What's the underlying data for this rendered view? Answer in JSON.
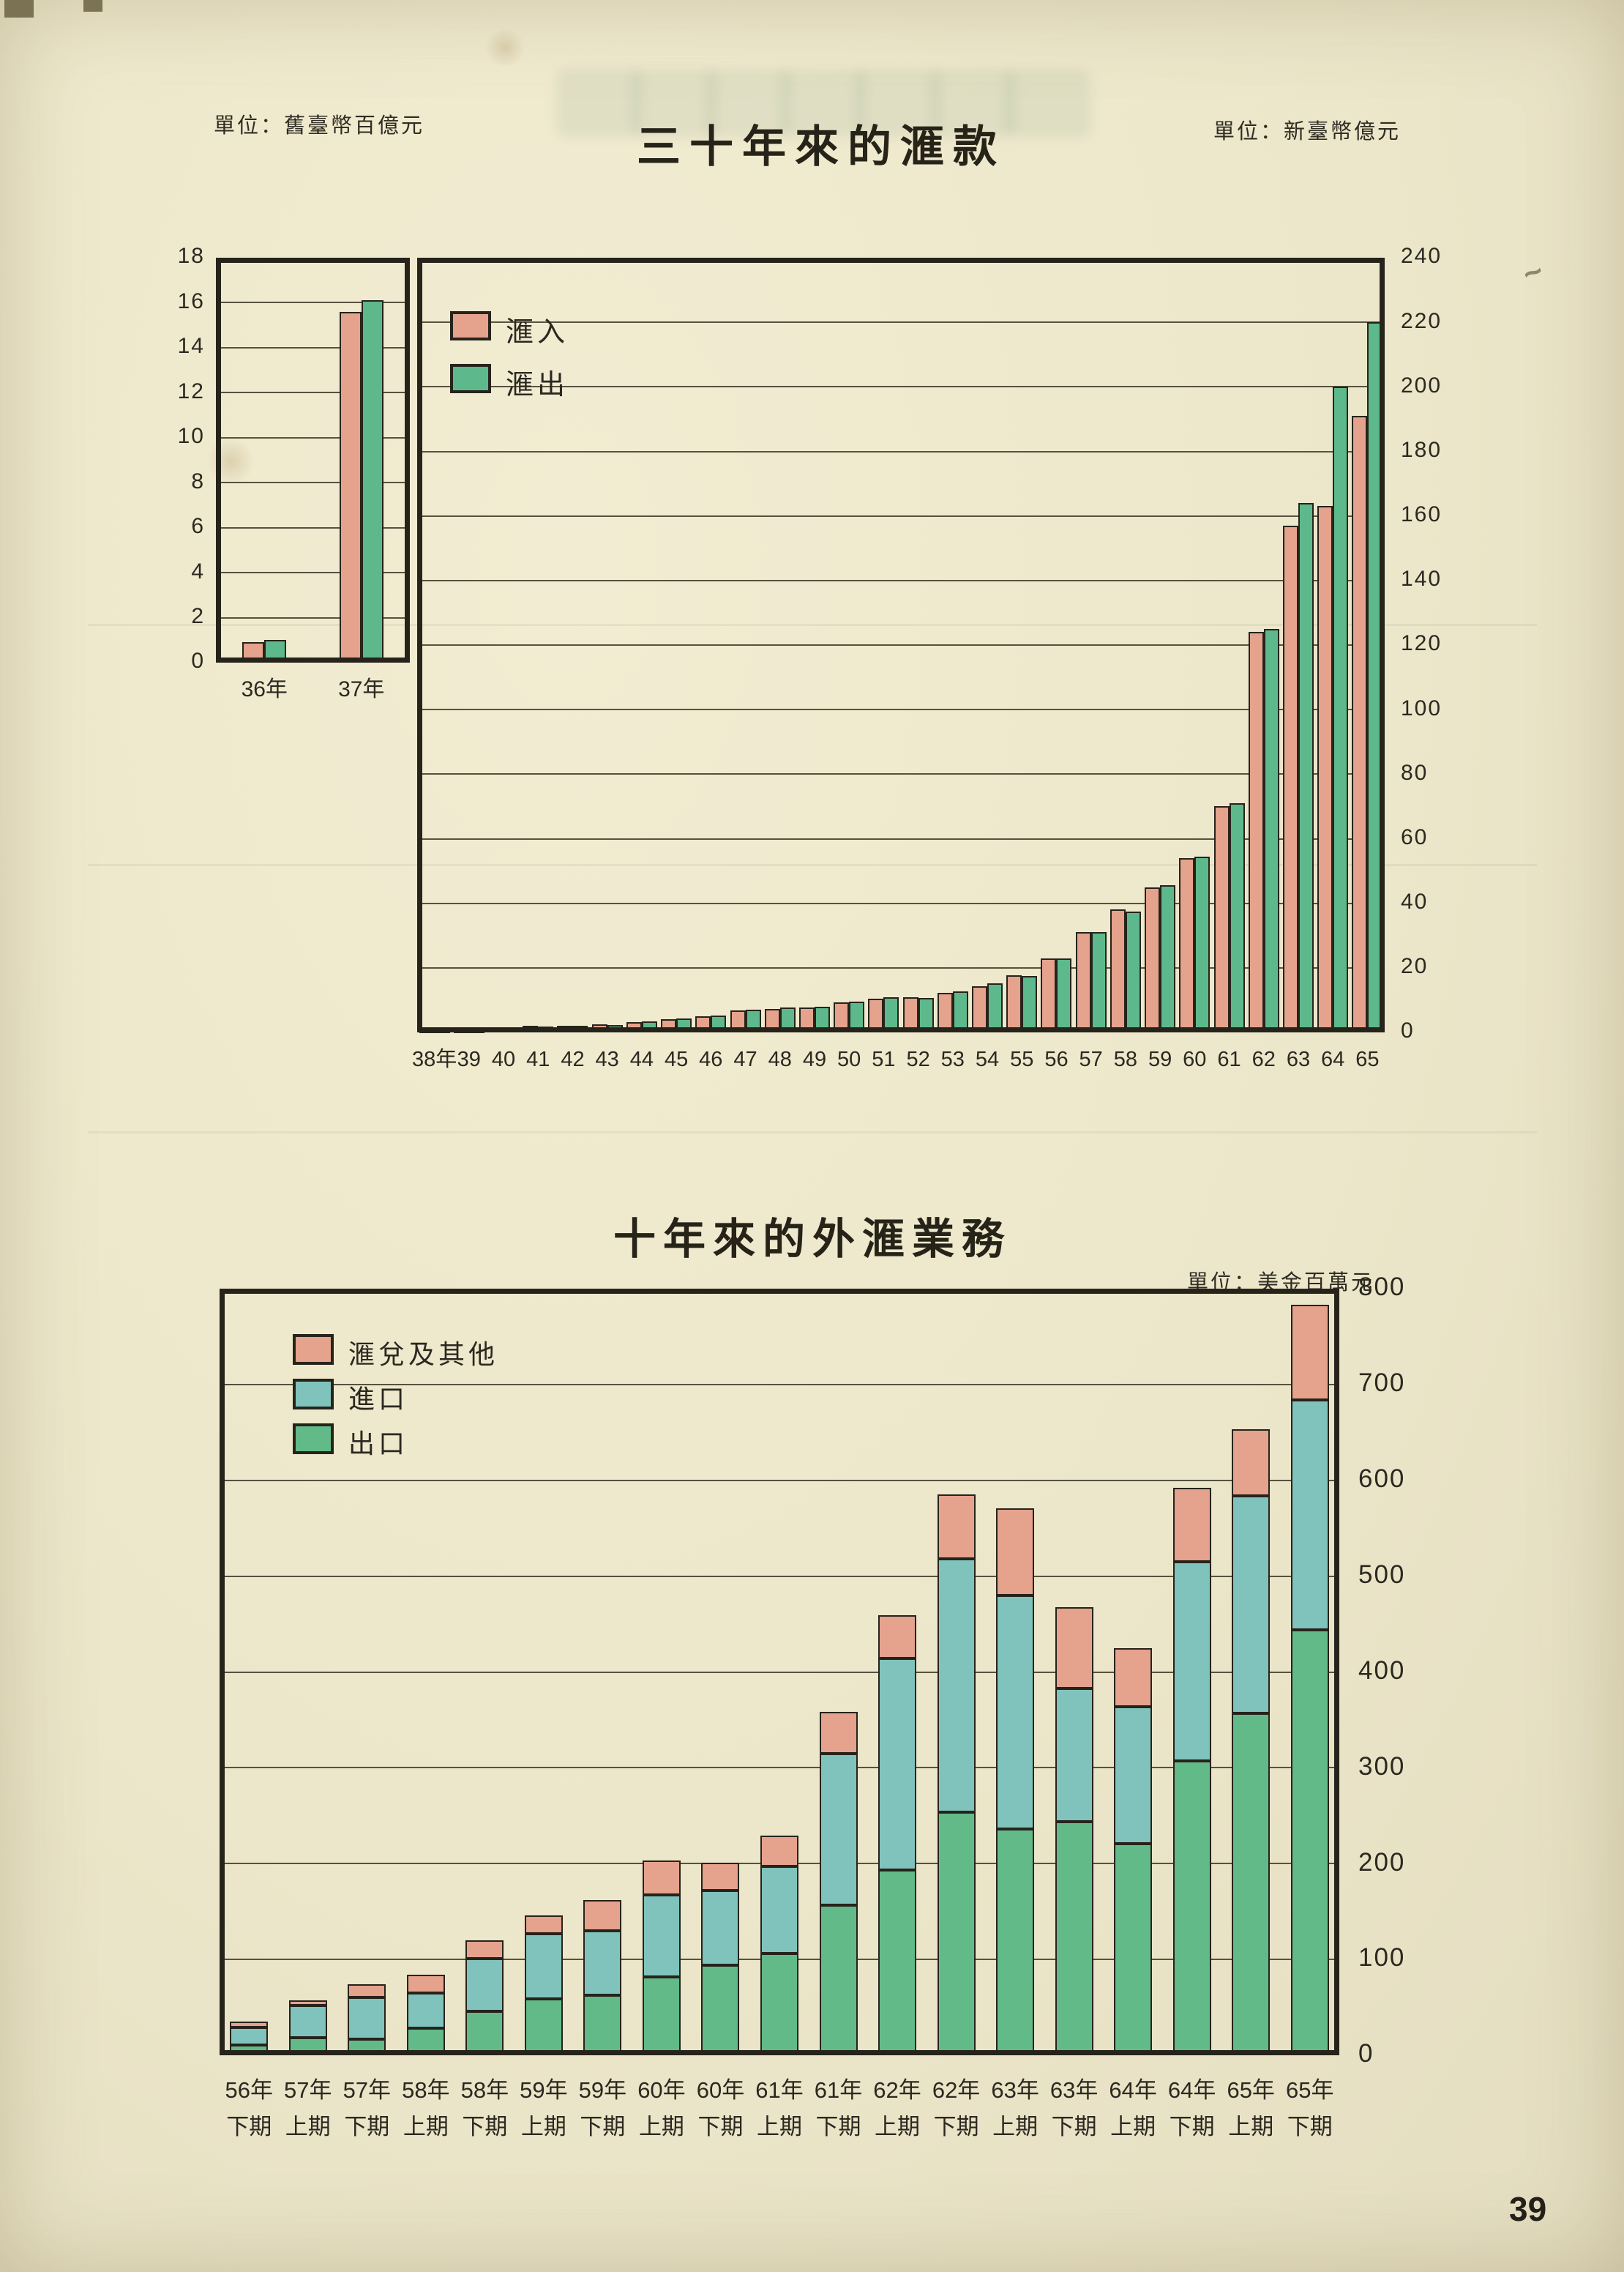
{
  "page": {
    "number": "39"
  },
  "chart_data": [
    {
      "type": "bar",
      "title": "三十年來的滙款",
      "unit_inset": "單位：舊臺幣百億元",
      "unit_main": "單位：新臺幣億元",
      "grid": true,
      "legend_position": "inside-top-left",
      "inset": {
        "categories": [
          "36年",
          "37年"
        ],
        "ylim": [
          0,
          18
        ],
        "ytick_step": 2,
        "series": [
          {
            "name": "滙入",
            "color": "#e5a28c",
            "values": [
              0.9,
              15.6
            ]
          },
          {
            "name": "滙出",
            "color": "#5db98b",
            "values": [
              1.0,
              16.1
            ]
          }
        ]
      },
      "main": {
        "categories": [
          "38年",
          "39",
          "40",
          "41",
          "42",
          "43",
          "44",
          "45",
          "46",
          "47",
          "48",
          "49",
          "50",
          "51",
          "52",
          "53",
          "54",
          "55",
          "56",
          "57",
          "58",
          "59",
          "60",
          "61",
          "62",
          "63",
          "64",
          "65"
        ],
        "ylim": [
          0,
          240
        ],
        "ytick_step": 20,
        "series": [
          {
            "name": "滙入",
            "color": "#e5a28c",
            "values": [
              0.5,
              0.5,
              1,
              2,
              2,
              2.5,
              3.2,
              4,
              5,
              6.7,
              7.3,
              7.7,
              9.2,
              10.5,
              11,
              12.2,
              14.4,
              17.7,
              23,
              31,
              38,
              45,
              54,
              70,
              124,
              157,
              163,
              191
            ]
          },
          {
            "name": "滙出",
            "color": "#5db98b",
            "values": [
              0.5,
              0.7,
              1.3,
              1.8,
              2,
              2.3,
              3.5,
              4.3,
              5.3,
              7,
              7.7,
              8,
              9.5,
              11,
              10.7,
              12.6,
              15.2,
              17.4,
              23,
              31,
              37.5,
              45.5,
              54.5,
              71,
              125,
              164,
              200,
              220
            ]
          }
        ]
      }
    },
    {
      "type": "stacked-bar",
      "title": "十年來的外滙業務",
      "unit": "單位：美金百萬元",
      "grid": true,
      "legend_position": "inside-top-left",
      "ylim": [
        0,
        800
      ],
      "ytick_step": 100,
      "categories": [
        [
          "56年",
          "下期"
        ],
        [
          "57年",
          "上期"
        ],
        [
          "57年",
          "下期"
        ],
        [
          "58年",
          "上期"
        ],
        [
          "58年",
          "下期"
        ],
        [
          "59年",
          "上期"
        ],
        [
          "59年",
          "下期"
        ],
        [
          "60年",
          "上期"
        ],
        [
          "60年",
          "下期"
        ],
        [
          "61年",
          "上期"
        ],
        [
          "61年",
          "下期"
        ],
        [
          "62年",
          "上期"
        ],
        [
          "62年",
          "下期"
        ],
        [
          "63年",
          "上期"
        ],
        [
          "63年",
          "下期"
        ],
        [
          "64年",
          "上期"
        ],
        [
          "64年",
          "下期"
        ],
        [
          "65年",
          "上期"
        ],
        [
          "65年",
          "下期"
        ]
      ],
      "series": [
        {
          "name": "出口",
          "color": "#62ba88",
          "values": [
            11,
            18,
            17,
            28,
            46,
            59,
            63,
            82,
            94,
            106,
            157,
            193,
            254,
            236,
            244,
            221,
            307,
            357,
            444
          ]
        },
        {
          "name": "進口",
          "color": "#7fc3bc",
          "values": [
            18,
            34,
            43,
            37,
            55,
            68,
            67,
            85,
            78,
            91,
            158,
            221,
            264,
            244,
            139,
            143,
            208,
            227,
            240
          ]
        },
        {
          "name": "滙兌及其他",
          "color": "#e5a28c",
          "values": [
            6,
            5,
            14,
            19,
            19,
            19,
            32,
            36,
            29,
            32,
            43,
            45,
            67,
            91,
            85,
            61,
            77,
            69,
            99
          ]
        }
      ],
      "legend": [
        "滙兌及其他",
        "進口",
        "出口"
      ]
    }
  ]
}
